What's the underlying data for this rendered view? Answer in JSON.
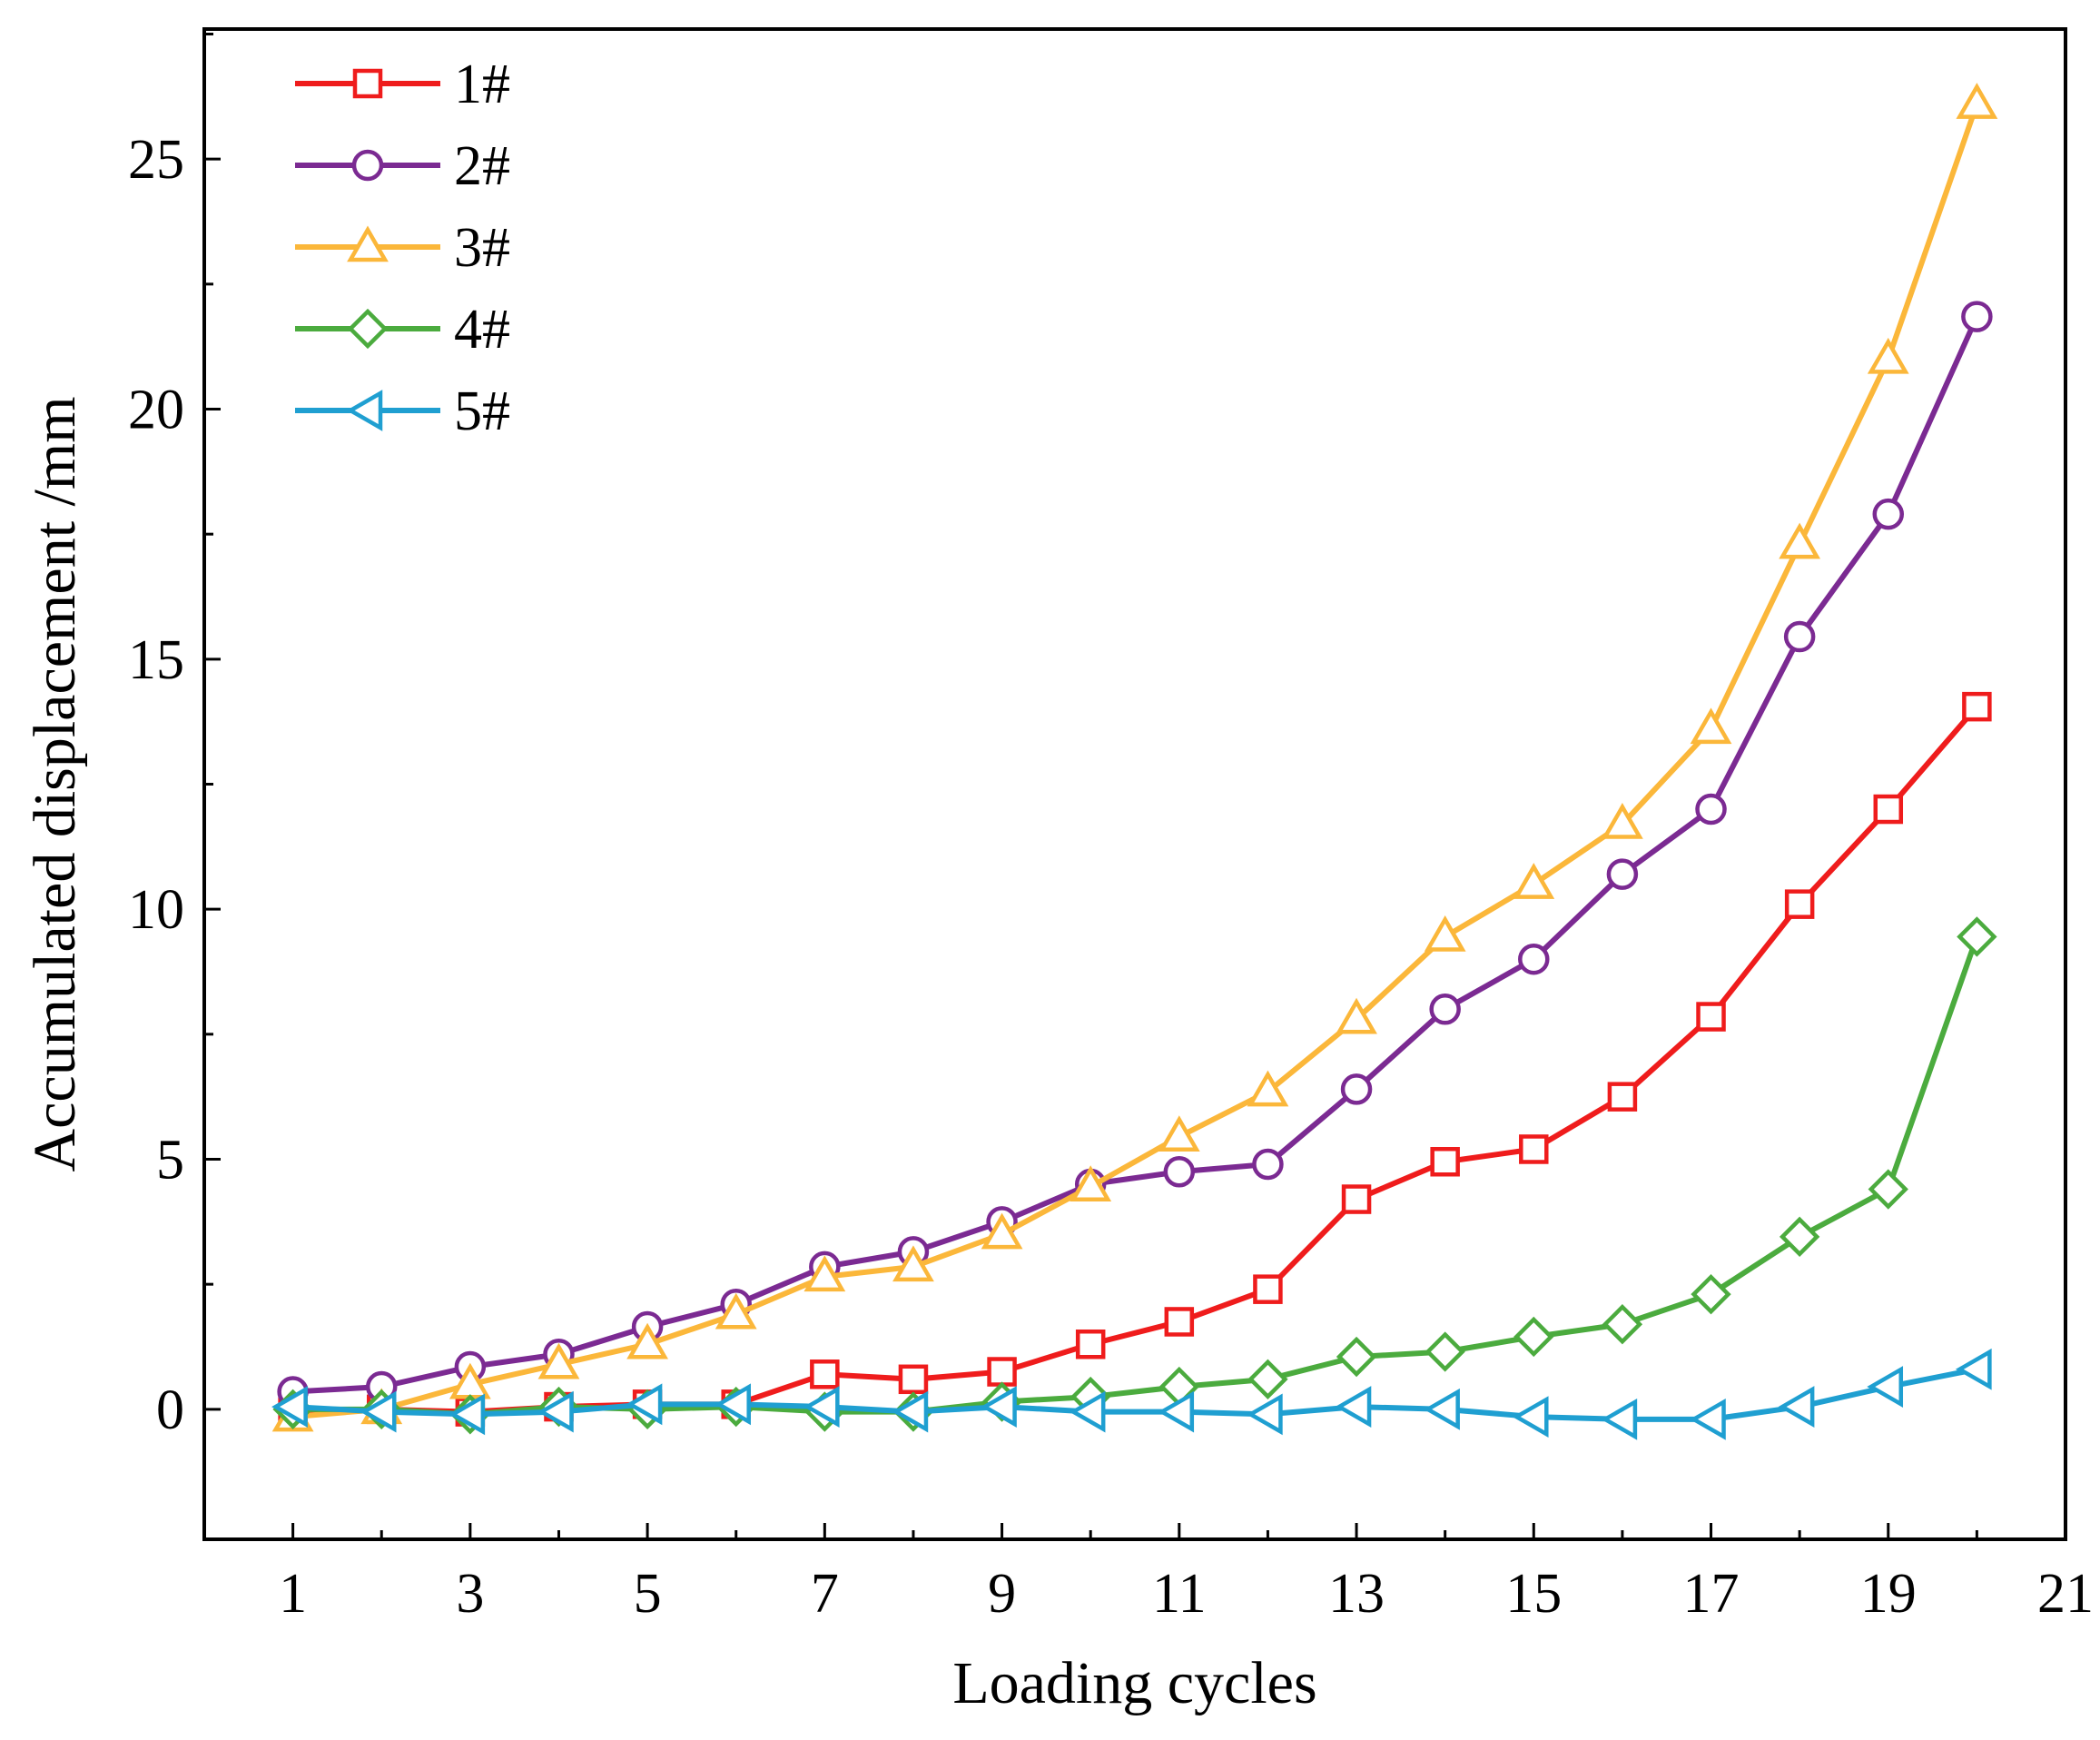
{
  "chart_data": {
    "type": "line",
    "title": "",
    "xlabel": "Loading cycles",
    "ylabel": "Accumulated displacement /mm",
    "xlim": [
      0,
      21
    ],
    "ylim": [
      -2.6,
      27.6
    ],
    "xticks": [
      1,
      3,
      5,
      7,
      9,
      11,
      13,
      15,
      17,
      19,
      21
    ],
    "yticks": [
      0,
      5,
      10,
      15,
      20,
      25
    ],
    "legend_position": "top-left",
    "x": [
      1,
      2,
      3,
      4,
      5,
      6,
      7,
      8,
      9,
      10,
      11,
      12,
      13,
      14,
      15,
      16,
      17,
      18,
      19,
      20
    ],
    "series": [
      {
        "name": "1#",
        "color": "#ef1c1c",
        "marker": "square",
        "values": [
          -0.05,
          0.0,
          -0.05,
          0.05,
          0.1,
          0.1,
          0.7,
          0.6,
          0.75,
          1.3,
          1.75,
          2.4,
          4.2,
          4.95,
          5.2,
          6.25,
          7.85,
          10.1,
          12.0,
          14.05
        ]
      },
      {
        "name": "2#",
        "color": "#7b2a92",
        "marker": "circle",
        "values": [
          0.35,
          0.45,
          0.85,
          1.1,
          1.65,
          2.1,
          2.85,
          3.15,
          3.75,
          4.5,
          4.75,
          4.9,
          6.4,
          8.0,
          9.0,
          10.7,
          12.0,
          15.45,
          17.9,
          21.85
        ]
      },
      {
        "name": "3#",
        "color": "#fbb73a",
        "marker": "triangle-up",
        "values": [
          -0.15,
          0.0,
          0.5,
          0.9,
          1.3,
          1.9,
          2.65,
          2.85,
          3.5,
          4.45,
          5.45,
          6.35,
          7.8,
          9.45,
          10.5,
          11.7,
          13.6,
          17.3,
          21.0,
          26.1
        ]
      },
      {
        "name": "4#",
        "color": "#4bab3e",
        "marker": "diamond",
        "values": [
          0.0,
          0.0,
          -0.1,
          0.05,
          0.0,
          0.05,
          -0.05,
          -0.05,
          0.15,
          0.25,
          0.45,
          0.6,
          1.05,
          1.15,
          1.45,
          1.7,
          2.3,
          3.45,
          4.4,
          9.45
        ]
      },
      {
        "name": "5#",
        "color": "#1f9fd1",
        "marker": "triangle-left",
        "values": [
          0.05,
          -0.05,
          -0.1,
          -0.05,
          0.1,
          0.1,
          0.05,
          -0.05,
          0.05,
          -0.05,
          -0.05,
          -0.1,
          0.05,
          0.0,
          -0.15,
          -0.2,
          -0.2,
          0.05,
          0.45,
          0.8
        ]
      }
    ]
  }
}
